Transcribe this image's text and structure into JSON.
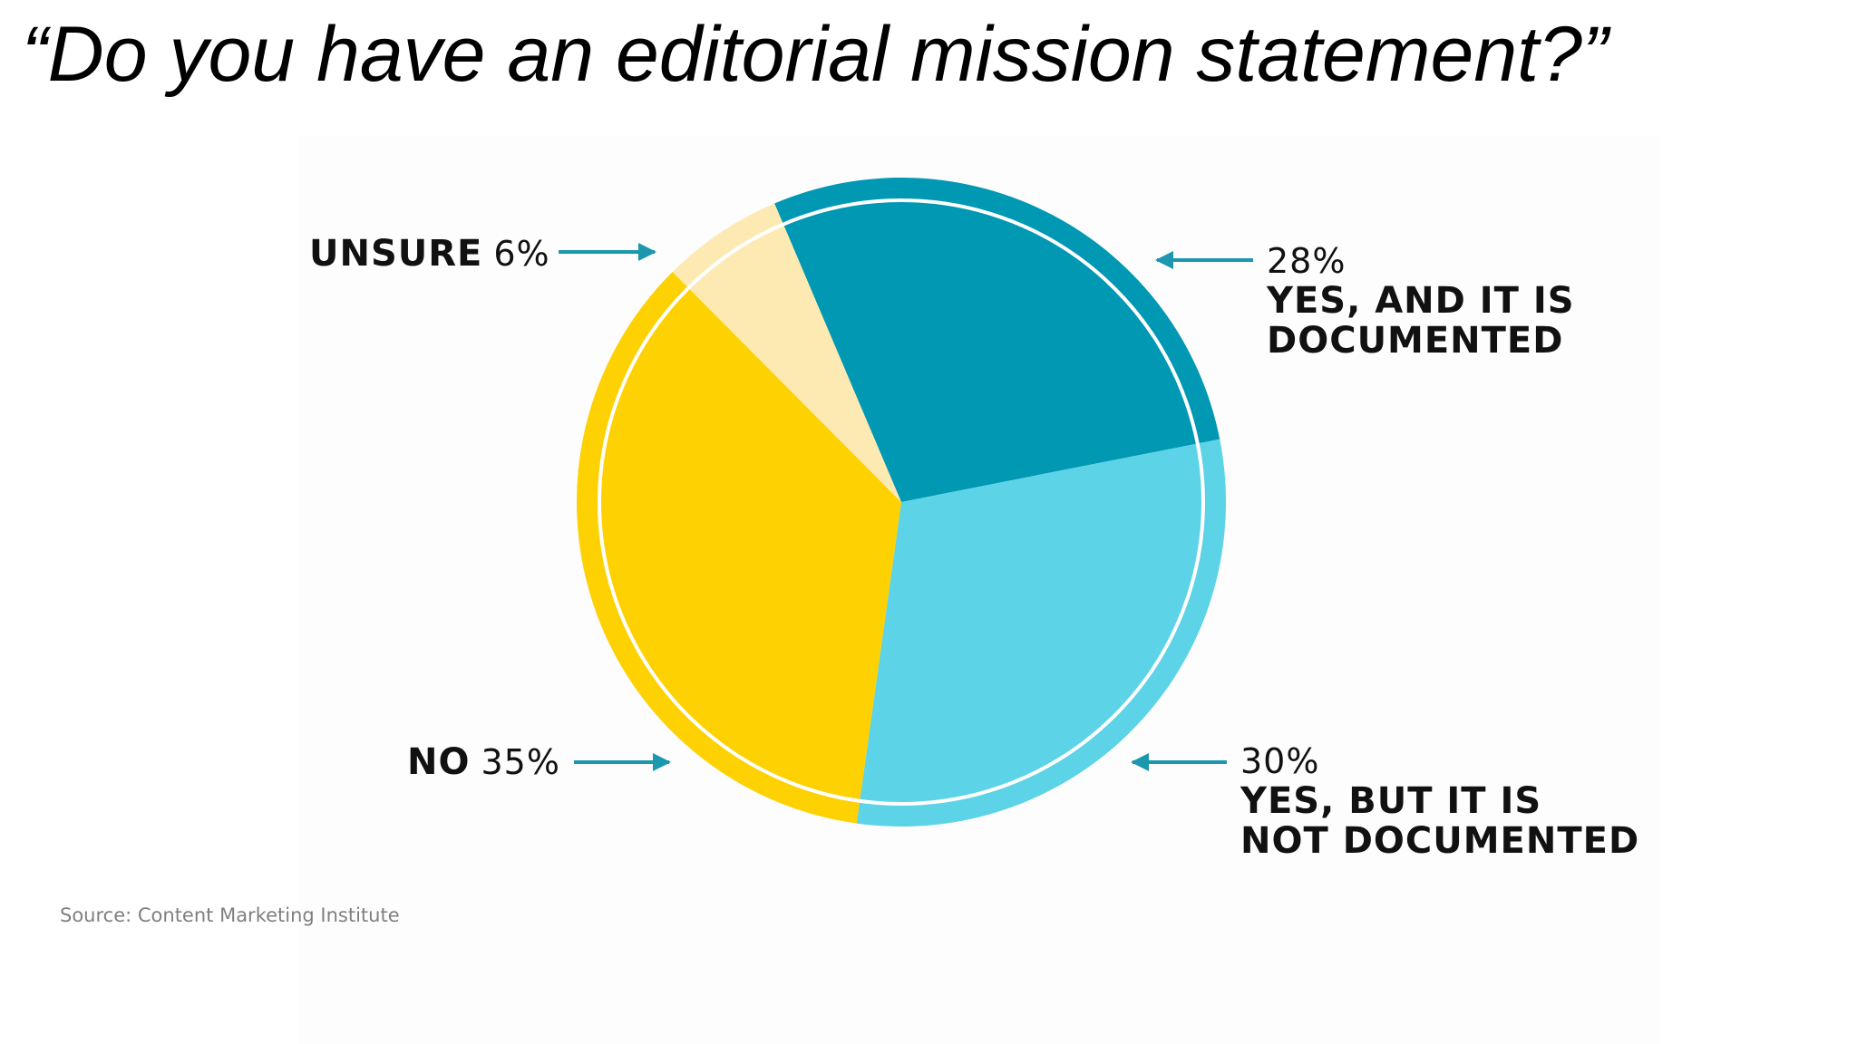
{
  "slide": {
    "title": "“Do you have an editorial mission statement?”",
    "source": "Source: Content Marketing Institute"
  },
  "chart_data": {
    "type": "pie",
    "title": "",
    "start_angle_deg": 0,
    "direction": "clockwise",
    "slices": [
      {
        "key": "yes_documented",
        "label": "YES, AND IT IS DOCUMENTED",
        "label_lines": [
          "YES, AND IT IS",
          "DOCUMENTED"
        ],
        "value_text": "28%",
        "value": 28,
        "color": "#0098b3"
      },
      {
        "key": "yes_not_documented",
        "label": "YES, BUT IT IS NOT DOCUMENTED",
        "label_lines": [
          "YES, BUT IT IS",
          "NOT DOCUMENTED"
        ],
        "value_text": "30%",
        "value": 30,
        "color": "#5cd3e6"
      },
      {
        "key": "no",
        "label": "NO",
        "label_lines": [
          "NO"
        ],
        "value_text": "35%",
        "value": 35,
        "color": "#fed103"
      },
      {
        "key": "unsure",
        "label": "UNSURE",
        "label_lines": [
          "UNSURE"
        ],
        "value_text": "6%",
        "value": 6,
        "color": "#fdeab3"
      }
    ],
    "outer_ring": true,
    "arrow_color": "#1b98ad"
  }
}
